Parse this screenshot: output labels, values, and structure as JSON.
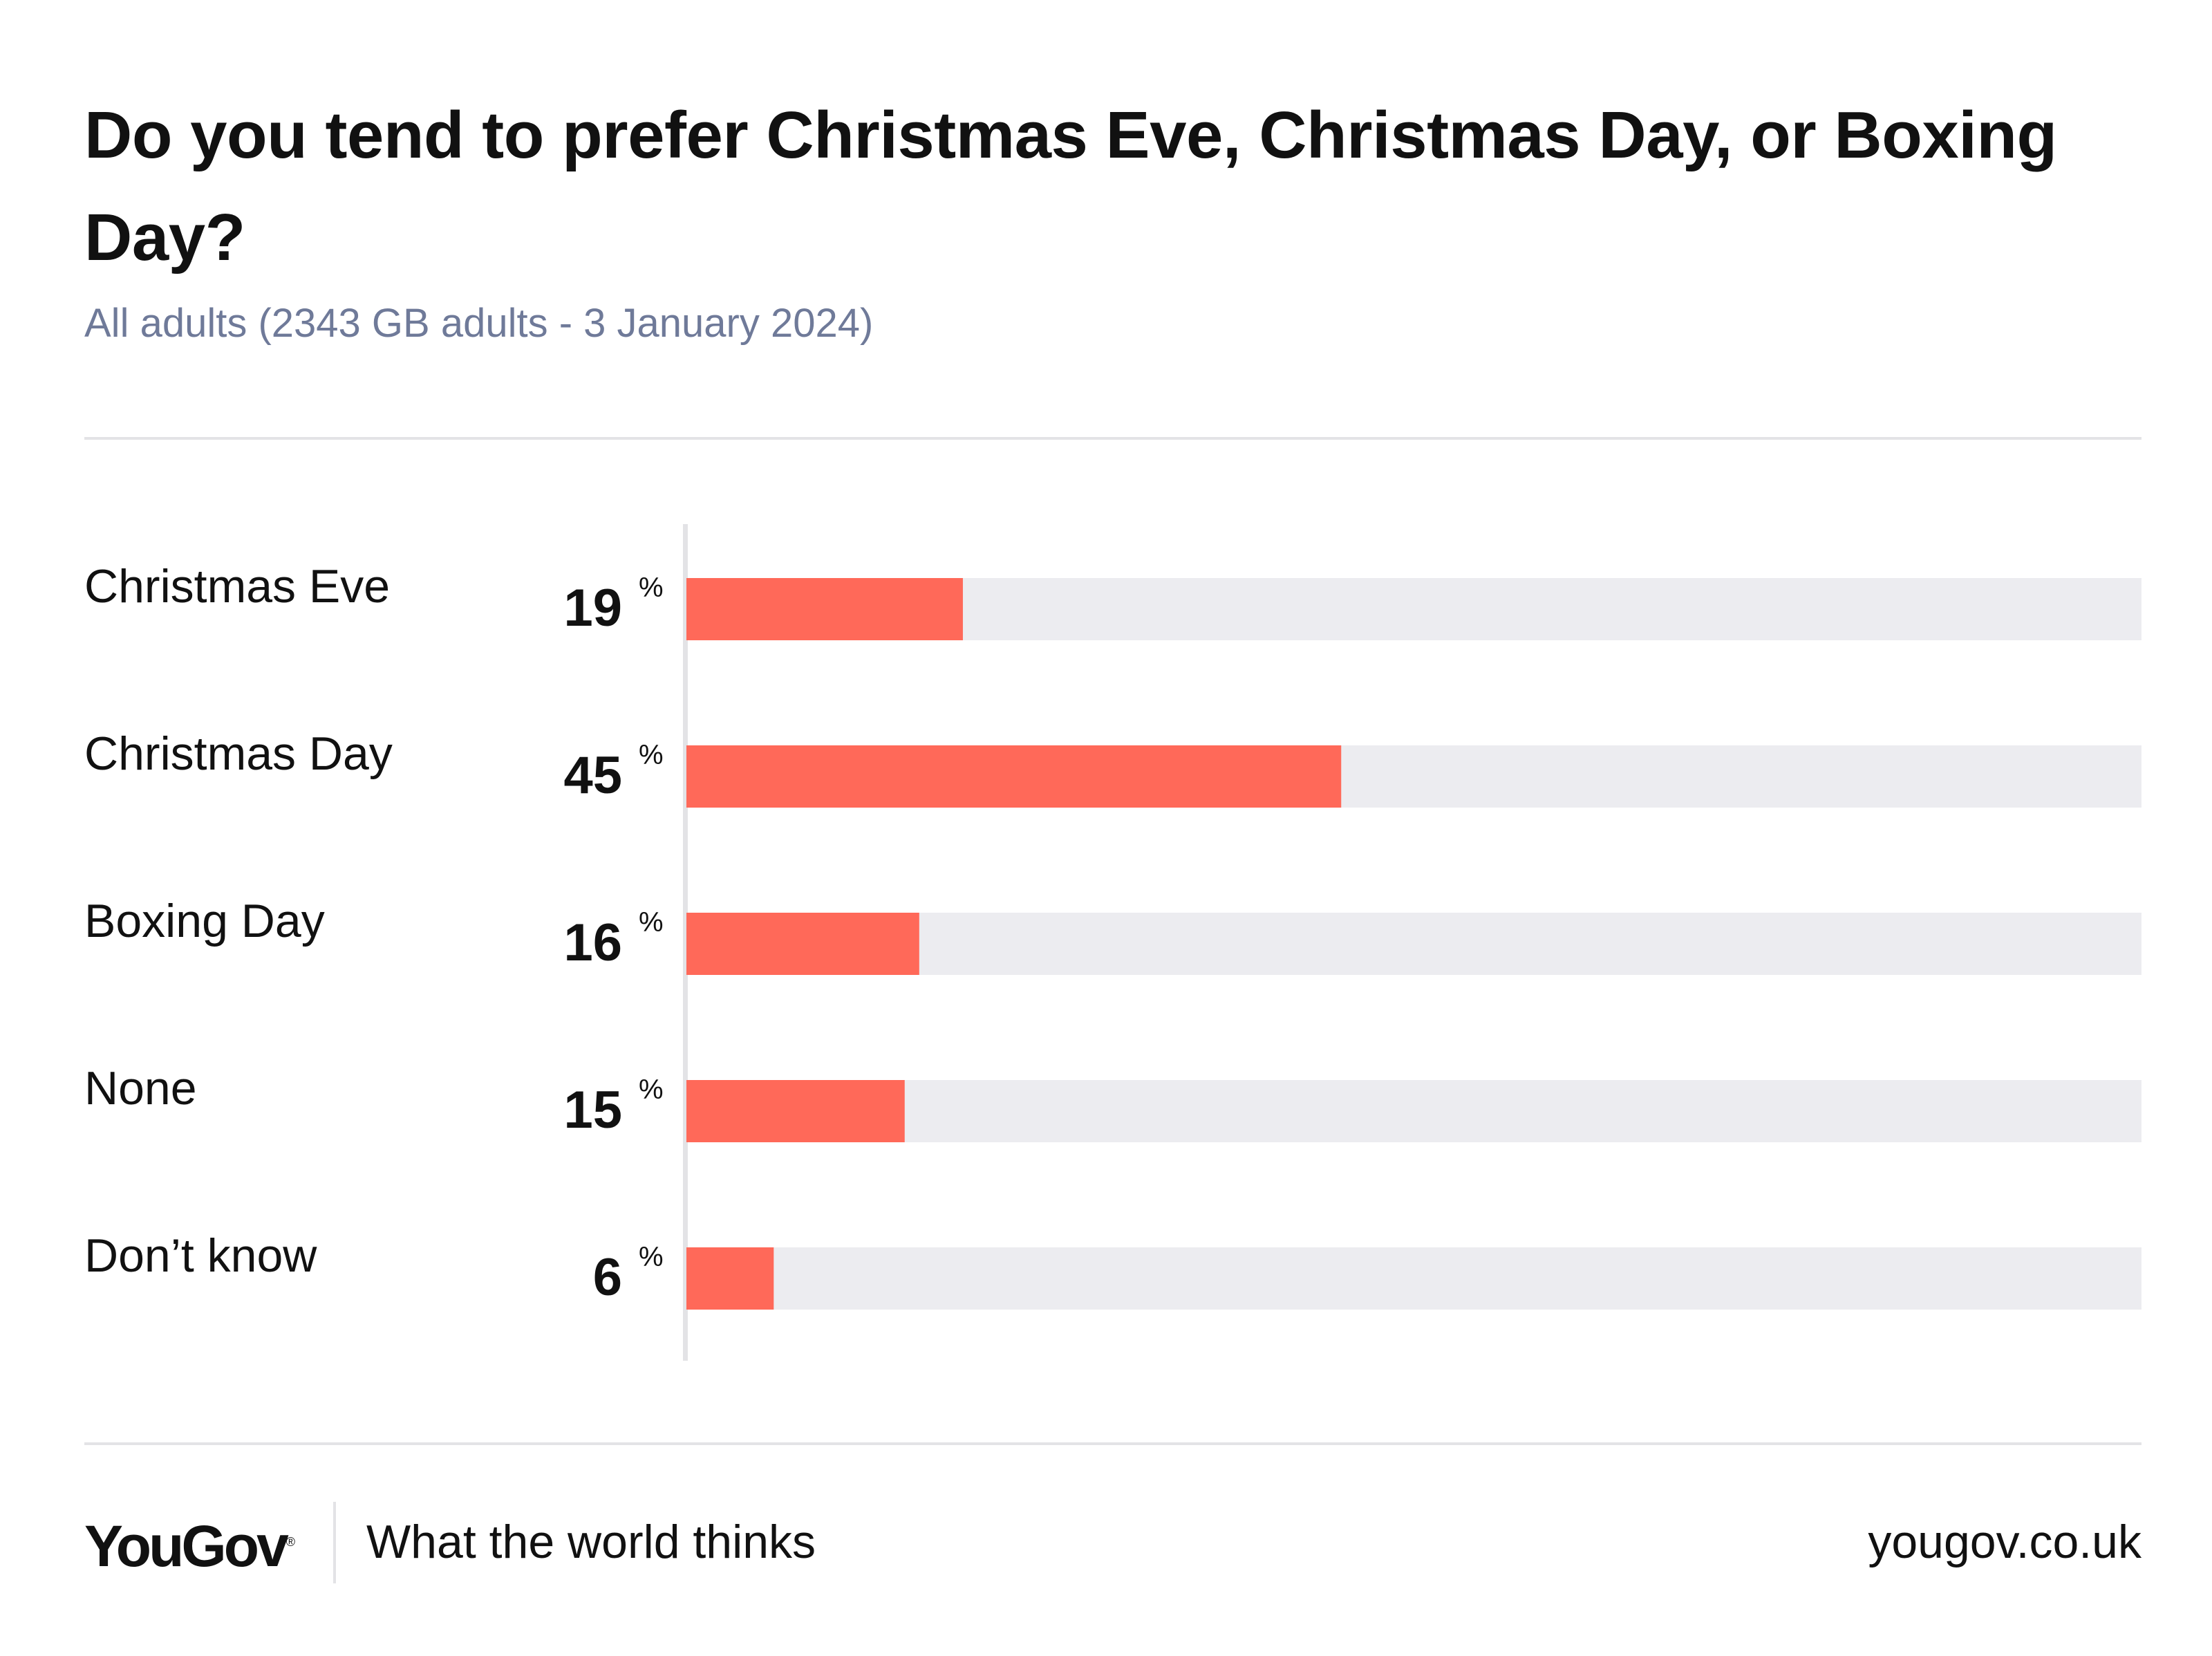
{
  "header": {
    "title": "Do you tend to prefer Christmas Eve, Christmas Day, or Boxing Day?",
    "subtitle": "All adults (2343 GB adults - 3 January 2024)"
  },
  "chart_data": {
    "type": "bar",
    "orientation": "horizontal",
    "title": "Do you tend to prefer Christmas Eve, Christmas Day, or Boxing Day?",
    "categories": [
      "Christmas Eve",
      "Christmas Day",
      "Boxing Day",
      "None",
      "Don’t know"
    ],
    "values": [
      19,
      45,
      16,
      15,
      6
    ],
    "unit": "%",
    "xlim": [
      0,
      100
    ],
    "colors": {
      "bar": "#ff6959",
      "track": "#ececf0",
      "axis": "#e3e3e6"
    }
  },
  "footer": {
    "brand": "YouGov",
    "tagline": "What the world thinks",
    "url": "yougov.co.uk"
  }
}
